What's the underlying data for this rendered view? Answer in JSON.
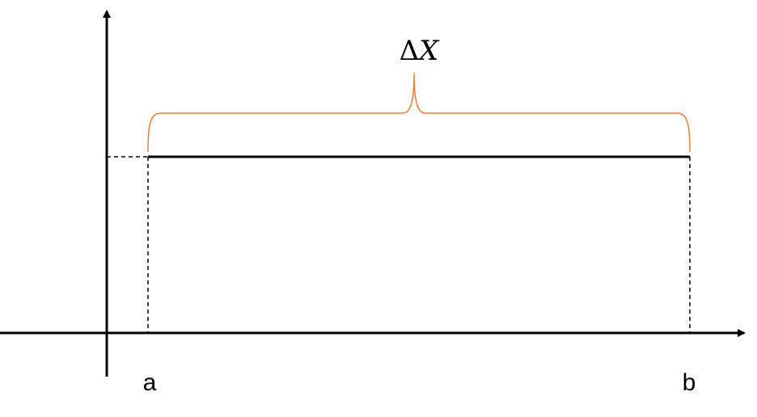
{
  "diagram": {
    "labels": {
      "a": "a",
      "b": "b",
      "delta_symbol": "Δ",
      "delta_var": "X"
    },
    "colors": {
      "axis": "#000000",
      "function_line": "#000000",
      "dashed": "#000000",
      "brace": "#ED7D31"
    }
  }
}
